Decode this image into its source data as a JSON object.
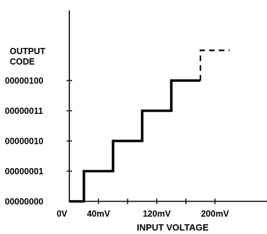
{
  "chart_data": {
    "type": "line",
    "step": true,
    "title": "",
    "xlabel": "INPUT VOLTAGE",
    "ylabel": "OUTPUT CODE",
    "ylabel_lines": [
      "OUTPUT",
      "CODE"
    ],
    "x_unit": "mV",
    "xlim": [
      0,
      280
    ],
    "ylim": [
      0,
      5
    ],
    "x_tick_values": [
      0,
      40,
      80,
      120,
      160,
      200
    ],
    "x_tick_labels": [
      {
        "value": 0,
        "label": "0V"
      },
      {
        "value": 40,
        "label": "40mV"
      },
      {
        "value": 120,
        "label": "120mV"
      },
      {
        "value": 200,
        "label": "200mV"
      }
    ],
    "y_tick_values": [
      0,
      1,
      2,
      3,
      4
    ],
    "y_tick_labels": [
      "00000000",
      "00000001",
      "00000010",
      "00000011",
      "00000100"
    ],
    "series": [
      {
        "style": "solid",
        "points": [
          [
            0,
            0
          ],
          [
            20,
            0
          ],
          [
            20,
            1
          ],
          [
            60,
            1
          ],
          [
            60,
            2
          ],
          [
            100,
            2
          ],
          [
            100,
            3
          ],
          [
            140,
            3
          ],
          [
            140,
            4
          ],
          [
            180,
            4
          ]
        ]
      },
      {
        "style": "dashed",
        "points": [
          [
            180,
            4
          ],
          [
            180,
            5
          ],
          [
            220,
            5
          ]
        ]
      }
    ],
    "grid": false,
    "legend": "none"
  },
  "colors": {
    "line": "#000000",
    "background": "#ffffff"
  }
}
